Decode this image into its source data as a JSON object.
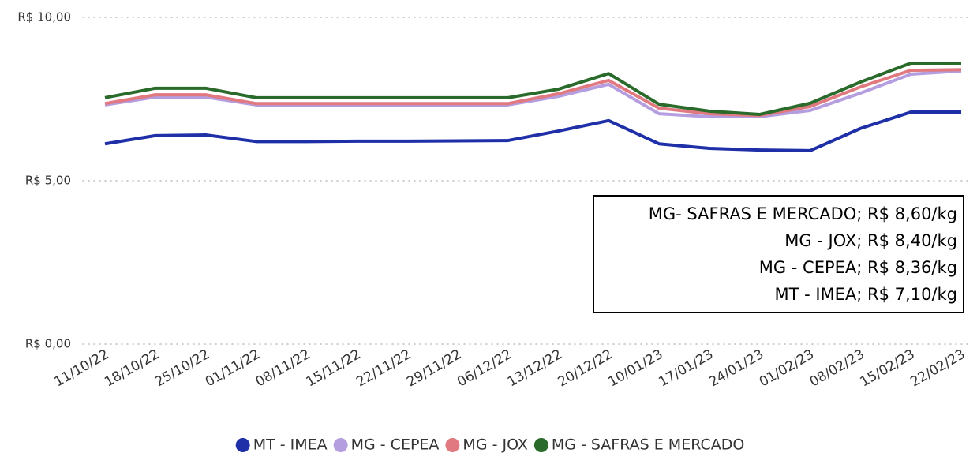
{
  "chart_data": {
    "type": "line",
    "categories": [
      "11/10/22",
      "18/10/22",
      "25/10/22",
      "01/11/22",
      "08/11/22",
      "15/11/22",
      "22/11/22",
      "29/11/22",
      "06/12/22",
      "13/12/22",
      "20/12/22",
      "10/01/23",
      "17/01/23",
      "24/01/23",
      "01/02/23",
      "08/02/23",
      "15/02/23",
      "22/02/23"
    ],
    "series": [
      {
        "name": "MT - IMEA",
        "color": "#1f2fa8",
        "values": [
          6.13,
          6.38,
          6.4,
          6.2,
          6.2,
          6.21,
          6.21,
          6.22,
          6.23,
          6.52,
          6.84,
          6.13,
          5.99,
          5.94,
          5.92,
          6.6,
          7.1,
          7.1
        ]
      },
      {
        "name": "MG - CEPEA",
        "color": "#b49ee0",
        "values": [
          7.32,
          7.56,
          7.56,
          7.32,
          7.32,
          7.32,
          7.32,
          7.32,
          7.32,
          7.58,
          7.95,
          7.05,
          6.96,
          6.96,
          7.15,
          7.68,
          8.26,
          8.36
        ]
      },
      {
        "name": "MG - JOX",
        "color": "#e07a80",
        "values": [
          7.36,
          7.63,
          7.63,
          7.36,
          7.36,
          7.36,
          7.36,
          7.36,
          7.36,
          7.66,
          8.07,
          7.22,
          7.05,
          7.0,
          7.27,
          7.87,
          8.38,
          8.4
        ]
      },
      {
        "name": "MG - SAFRAS E MERCADO",
        "color": "#2a6a2a",
        "values": [
          7.54,
          7.83,
          7.83,
          7.54,
          7.54,
          7.54,
          7.54,
          7.54,
          7.54,
          7.8,
          8.28,
          7.34,
          7.13,
          7.03,
          7.37,
          8.02,
          8.6,
          8.6
        ]
      }
    ],
    "ylim": [
      0,
      10
    ],
    "yticks": [
      {
        "value": 0,
        "label": "R$ 0,00"
      },
      {
        "value": 5,
        "label": "R$ 5,00"
      },
      {
        "value": 10,
        "label": "R$ 10,00"
      }
    ],
    "grid": true,
    "legend": "bottom",
    "annotations": [
      "MG- SAFRAS E MERCADO; R$ 8,60/kg",
      "MG - JOX; R$ 8,40/kg",
      "MG - CEPEA; R$ 8,36/kg",
      "MT - IMEA; R$ 7,10/kg"
    ]
  }
}
